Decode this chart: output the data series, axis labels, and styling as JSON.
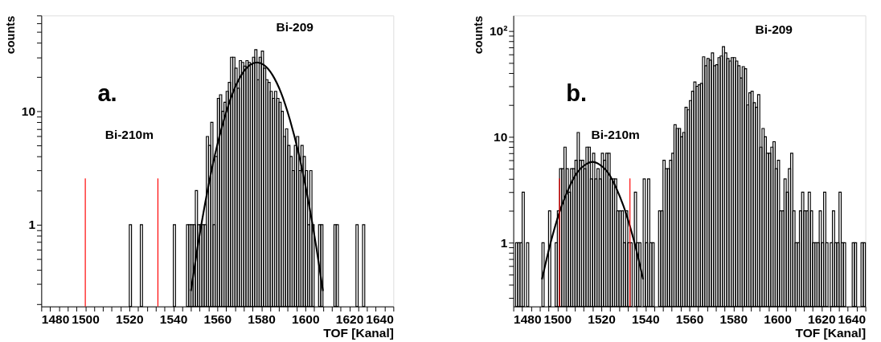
{
  "chart_data": [
    {
      "type": "histogram",
      "xlabel": "TOF [Kanal]",
      "ylabel": "counts",
      "log": "y",
      "annotations": [
        "a.",
        "Bi-209",
        "Bi-210m"
      ],
      "xlim": [
        1480,
        1640
      ],
      "ylim": [
        0.19,
        70
      ],
      "xticks": [
        1480,
        {
          "value": 1484,
          "label": null
        },
        {
          "value": 1488,
          "label": null
        },
        {
          "value": 1492,
          "label": null
        },
        {
          "value": 1496,
          "label": null
        },
        1500,
        {
          "value": 1504,
          "label": null
        },
        {
          "value": 1508,
          "label": null
        },
        {
          "value": 1512,
          "label": null
        },
        {
          "value": 1516,
          "label": null
        },
        1520,
        {
          "value": 1524,
          "label": null
        },
        {
          "value": 1528,
          "label": null
        },
        {
          "value": 1532,
          "label": null
        },
        {
          "value": 1536,
          "label": null
        },
        1540,
        {
          "value": 1544,
          "label": null
        },
        {
          "value": 1548,
          "label": null
        },
        {
          "value": 1552,
          "label": null
        },
        {
          "value": 1556,
          "label": null
        },
        1560,
        {
          "value": 1564,
          "label": null
        },
        {
          "value": 1568,
          "label": null
        },
        {
          "value": 1572,
          "label": null
        },
        {
          "value": 1576,
          "label": null
        },
        1580,
        {
          "value": 1584,
          "label": null
        },
        {
          "value": 1588,
          "label": null
        },
        {
          "value": 1592,
          "label": null
        },
        {
          "value": 1596,
          "label": null
        },
        1600,
        {
          "value": 1604,
          "label": null
        },
        {
          "value": 1608,
          "label": null
        },
        {
          "value": 1612,
          "label": null
        },
        {
          "value": 1616,
          "label": null
        },
        1620,
        {
          "value": 1624,
          "label": null
        },
        {
          "value": 1628,
          "label": null
        },
        {
          "value": 1632,
          "label": null
        },
        {
          "value": 1636,
          "label": null
        },
        1640
      ],
      "yticks": [
        {
          "value": 0.2,
          "label": null
        },
        {
          "value": 0.3,
          "label": null
        },
        {
          "value": 0.4,
          "label": null
        },
        {
          "value": 0.5,
          "label": null
        },
        {
          "value": 0.6,
          "label": null
        },
        {
          "value": 0.7,
          "label": null
        },
        {
          "value": 0.8,
          "label": null
        },
        {
          "value": 0.9,
          "label": null
        },
        1,
        {
          "value": 2,
          "label": null
        },
        {
          "value": 3,
          "label": null
        },
        {
          "value": 4,
          "label": null
        },
        {
          "value": 5,
          "label": null
        },
        {
          "value": 6,
          "label": null
        },
        {
          "value": 7,
          "label": null
        },
        {
          "value": 8,
          "label": null
        },
        {
          "value": 9,
          "label": null
        },
        10,
        {
          "value": 20,
          "label": null
        },
        {
          "value": 30,
          "label": null
        },
        {
          "value": 40,
          "label": null
        },
        {
          "value": 50,
          "label": null
        },
        {
          "value": 60,
          "label": null
        },
        {
          "value": 70,
          "label": null
        }
      ],
      "ref_lines": [
        {
          "axis": "x",
          "value": 1500,
          "color": "#ff0000"
        },
        {
          "axis": "x",
          "value": 1533,
          "color": "#ff0000"
        }
      ],
      "series": [
        {
          "color": "#000000",
          "bins": [
            1480,
            1481,
            1482,
            1483,
            1484,
            1485,
            1486,
            1487,
            1488,
            1489,
            1490,
            1491,
            1492,
            1493,
            1494,
            1495,
            1496,
            1497,
            1498,
            1499,
            1500,
            1501,
            1502,
            1503,
            1504,
            1505,
            1506,
            1507,
            1508,
            1509,
            1510,
            1511,
            1512,
            1513,
            1514,
            1515,
            1516,
            1517,
            1518,
            1519,
            1520,
            1521,
            1522,
            1523,
            1524,
            1525,
            1526,
            1527,
            1528,
            1529,
            1530,
            1531,
            1532,
            1533,
            1534,
            1535,
            1536,
            1537,
            1538,
            1539,
            1540,
            1541,
            1542,
            1543,
            1544,
            1545,
            1546,
            1547,
            1548,
            1549,
            1550,
            1551,
            1552,
            1553,
            1554,
            1555,
            1556,
            1557,
            1558,
            1559,
            1560,
            1561,
            1562,
            1563,
            1564,
            1565,
            1566,
            1567,
            1568,
            1569,
            1570,
            1571,
            1572,
            1573,
            1574,
            1575,
            1576,
            1577,
            1578,
            1579,
            1580,
            1581,
            1582,
            1583,
            1584,
            1585,
            1586,
            1587,
            1588,
            1589,
            1590,
            1591,
            1592,
            1593,
            1594,
            1595,
            1596,
            1597,
            1598,
            1599,
            1600,
            1601,
            1602,
            1603,
            1604,
            1605,
            1606,
            1607,
            1608,
            1609,
            1610,
            1611,
            1612,
            1613,
            1614,
            1615,
            1616,
            1617,
            1618,
            1619,
            1620,
            1621,
            1622,
            1623,
            1624,
            1625,
            1626,
            1627,
            1628,
            1629,
            1630,
            1631,
            1632,
            1633,
            1634,
            1635,
            1636,
            1637,
            1638,
            1639,
            1640
          ],
          "values": [
            null,
            null,
            null,
            null,
            null,
            null,
            null,
            null,
            null,
            null,
            null,
            null,
            null,
            null,
            null,
            null,
            null,
            null,
            null,
            null,
            null,
            null,
            null,
            null,
            null,
            null,
            null,
            null,
            null,
            null,
            null,
            null,
            null,
            null,
            null,
            null,
            null,
            null,
            null,
            null,
            1,
            null,
            null,
            null,
            null,
            1,
            null,
            null,
            null,
            null,
            null,
            null,
            null,
            null,
            null,
            null,
            null,
            null,
            null,
            null,
            1,
            null,
            null,
            null,
            null,
            null,
            1,
            1,
            1,
            1,
            2,
            1,
            1,
            1,
            1,
            6,
            5,
            8,
            1,
            4,
            13,
            14,
            10,
            12,
            15,
            18,
            30,
            30,
            24,
            16,
            28,
            27,
            25,
            28,
            27,
            26,
            30,
            35,
            19,
            30,
            34,
            24,
            19,
            18,
            15,
            13,
            15,
            13,
            12,
            10,
            6,
            7,
            5,
            4,
            3,
            5,
            6,
            3,
            5,
            4,
            3,
            1,
            3,
            1,
            null,
            null,
            1,
            1,
            null,
            null,
            null,
            null,
            null,
            1,
            1,
            null,
            null,
            null,
            null,
            null,
            null,
            null,
            null,
            1,
            null,
            null,
            1,
            null,
            null,
            null,
            null,
            null,
            null,
            null,
            null,
            null,
            null,
            null,
            null,
            null
          ]
        },
        {
          "type": "line",
          "color": "#000000",
          "x": [
            1548,
            1551,
            1555,
            1559,
            1563,
            1567,
            1571,
            1575,
            1578,
            1581,
            1585,
            1589,
            1593,
            1597,
            1601,
            1605,
            1608
          ],
          "values": [
            0.26,
            0.63,
            1.76,
            4.2,
            8.4,
            14.5,
            21,
            25.7,
            27,
            25.7,
            21,
            14.5,
            8.4,
            4.2,
            1.76,
            0.63,
            0.26
          ]
        }
      ]
    },
    {
      "type": "histogram",
      "xlabel": "TOF [Kanal]",
      "ylabel": "counts",
      "log": "y",
      "annotations": [
        "b.",
        "Bi-209",
        "Bi-210m"
      ],
      "xlim": [
        1480,
        1640
      ],
      "ylim": [
        0.25,
        140
      ],
      "xticks": [
        1480,
        {
          "value": 1484,
          "label": null
        },
        {
          "value": 1488,
          "label": null
        },
        {
          "value": 1492,
          "label": null
        },
        {
          "value": 1496,
          "label": null
        },
        1500,
        {
          "value": 1504,
          "label": null
        },
        {
          "value": 1508,
          "label": null
        },
        {
          "value": 1512,
          "label": null
        },
        {
          "value": 1516,
          "label": null
        },
        1520,
        {
          "value": 1524,
          "label": null
        },
        {
          "value": 1528,
          "label": null
        },
        {
          "value": 1532,
          "label": null
        },
        {
          "value": 1536,
          "label": null
        },
        1540,
        {
          "value": 1544,
          "label": null
        },
        {
          "value": 1548,
          "label": null
        },
        {
          "value": 1552,
          "label": null
        },
        {
          "value": 1556,
          "label": null
        },
        1560,
        {
          "value": 1564,
          "label": null
        },
        {
          "value": 1568,
          "label": null
        },
        {
          "value": 1572,
          "label": null
        },
        {
          "value": 1576,
          "label": null
        },
        1580,
        {
          "value": 1584,
          "label": null
        },
        {
          "value": 1588,
          "label": null
        },
        {
          "value": 1592,
          "label": null
        },
        {
          "value": 1596,
          "label": null
        },
        1600,
        {
          "value": 1604,
          "label": null
        },
        {
          "value": 1608,
          "label": null
        },
        {
          "value": 1612,
          "label": null
        },
        {
          "value": 1616,
          "label": null
        },
        1620,
        {
          "value": 1624,
          "label": null
        },
        {
          "value": 1628,
          "label": null
        },
        {
          "value": 1632,
          "label": null
        },
        {
          "value": 1636,
          "label": null
        },
        1640
      ],
      "yticks": [
        {
          "value": 0.3,
          "label": null
        },
        {
          "value": 0.4,
          "label": null
        },
        {
          "value": 0.5,
          "label": null
        },
        {
          "value": 0.6,
          "label": null
        },
        {
          "value": 0.7,
          "label": null
        },
        {
          "value": 0.8,
          "label": null
        },
        {
          "value": 0.9,
          "label": null
        },
        1,
        {
          "value": 2,
          "label": null
        },
        {
          "value": 3,
          "label": null
        },
        {
          "value": 4,
          "label": null
        },
        {
          "value": 5,
          "label": null
        },
        {
          "value": 6,
          "label": null
        },
        {
          "value": 7,
          "label": null
        },
        {
          "value": 8,
          "label": null
        },
        {
          "value": 9,
          "label": null
        },
        10,
        {
          "value": 20,
          "label": null
        },
        {
          "value": 30,
          "label": null
        },
        {
          "value": 40,
          "label": null
        },
        {
          "value": 50,
          "label": null
        },
        {
          "value": 60,
          "label": null
        },
        {
          "value": 70,
          "label": null
        },
        {
          "value": 80,
          "label": null
        },
        {
          "value": 90,
          "label": null
        },
        {
          "value": 100,
          "label": "10²"
        }
      ],
      "ref_lines": [
        {
          "axis": "x",
          "value": 1501,
          "color": "#ff0000"
        },
        {
          "axis": "x",
          "value": 1533,
          "color": "#ff0000"
        }
      ],
      "series": [
        {
          "color": "#000000",
          "bins": [
            1480,
            1481,
            1482,
            1483,
            1484,
            1485,
            1486,
            1487,
            1488,
            1489,
            1490,
            1491,
            1492,
            1493,
            1494,
            1495,
            1496,
            1497,
            1498,
            1499,
            1500,
            1501,
            1502,
            1503,
            1504,
            1505,
            1506,
            1507,
            1508,
            1509,
            1510,
            1511,
            1512,
            1513,
            1514,
            1515,
            1516,
            1517,
            1518,
            1519,
            1520,
            1521,
            1522,
            1523,
            1524,
            1525,
            1526,
            1527,
            1528,
            1529,
            1530,
            1531,
            1532,
            1533,
            1534,
            1535,
            1536,
            1537,
            1538,
            1539,
            1540,
            1541,
            1542,
            1543,
            1544,
            1545,
            1546,
            1547,
            1548,
            1549,
            1550,
            1551,
            1552,
            1553,
            1554,
            1555,
            1556,
            1557,
            1558,
            1559,
            1560,
            1561,
            1562,
            1563,
            1564,
            1565,
            1566,
            1567,
            1568,
            1569,
            1570,
            1571,
            1572,
            1573,
            1574,
            1575,
            1576,
            1577,
            1578,
            1579,
            1580,
            1581,
            1582,
            1583,
            1584,
            1585,
            1586,
            1587,
            1588,
            1589,
            1590,
            1591,
            1592,
            1593,
            1594,
            1595,
            1596,
            1597,
            1598,
            1599,
            1600,
            1601,
            1602,
            1603,
            1604,
            1605,
            1606,
            1607,
            1608,
            1609,
            1610,
            1611,
            1612,
            1613,
            1614,
            1615,
            1616,
            1617,
            1618,
            1619,
            1620,
            1621,
            1622,
            1623,
            1624,
            1625,
            1626,
            1627,
            1628,
            1629,
            1630,
            1631,
            1632,
            1633,
            1634,
            1635,
            1636,
            1637,
            1638,
            1639,
            1640
          ],
          "values": [
            null,
            1,
            1,
            1,
            3,
            null,
            1,
            null,
            null,
            null,
            null,
            null,
            null,
            1,
            null,
            null,
            2,
            null,
            null,
            1,
            2,
            5,
            5,
            8,
            5,
            3,
            5,
            5,
            6,
            11,
            6,
            6,
            5,
            8,
            8,
            4,
            7,
            4,
            5,
            4,
            7,
            6,
            7,
            7,
            4,
            4,
            4,
            2,
            2,
            2,
            1,
            2,
            1,
            1,
            null,
            3,
            1,
            1,
            null,
            4,
            1,
            4,
            1,
            1,
            null,
            null,
            2,
            2,
            6,
            5,
            5,
            6,
            7,
            13,
            12,
            12,
            10,
            11,
            19,
            18,
            22,
            27,
            33,
            30,
            31,
            32,
            57,
            47,
            55,
            53,
            62,
            47,
            48,
            56,
            58,
            71,
            62,
            55,
            52,
            56,
            56,
            52,
            47,
            36,
            46,
            44,
            20,
            26,
            27,
            21,
            19,
            25,
            8,
            12,
            10,
            7,
            7,
            8,
            9,
            5,
            6,
            2,
            2,
            4,
            3,
            5,
            7,
            2,
            1,
            1,
            2,
            3,
            2,
            2,
            3,
            2,
            1,
            1,
            1,
            2,
            1,
            3,
            1,
            null,
            1,
            2,
            1,
            1,
            3,
            1,
            1,
            null,
            null,
            null,
            1,
            1,
            null,
            null,
            1,
            1
          ]
        },
        {
          "type": "line",
          "color": "#000000",
          "x": [
            1493,
            1497,
            1501,
            1505,
            1509,
            1513,
            1516,
            1519,
            1523,
            1527,
            1531,
            1535,
            1539
          ],
          "values": [
            0.45,
            1.01,
            1.95,
            3.2,
            4.6,
            5.5,
            5.8,
            5.5,
            4.6,
            3.2,
            1.95,
            1.01,
            0.45
          ]
        }
      ]
    }
  ]
}
